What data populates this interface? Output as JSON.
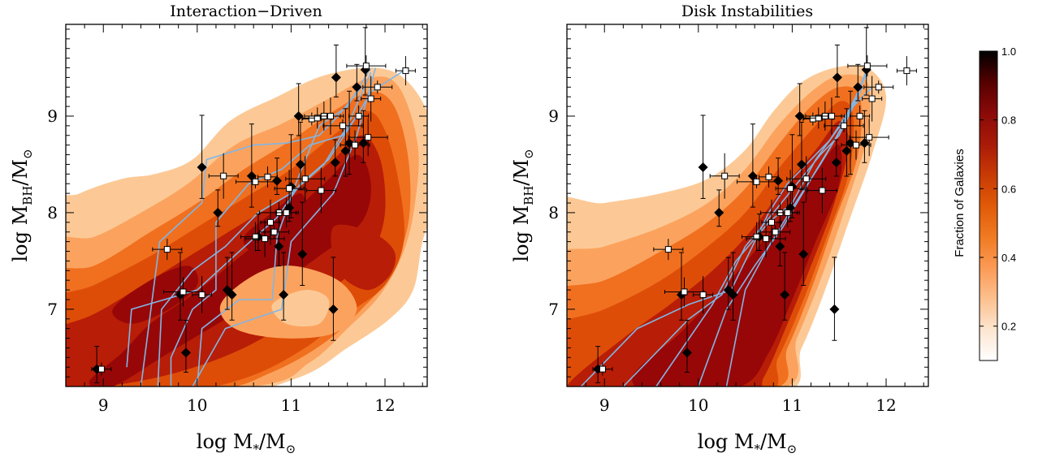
{
  "chart_data": [
    {
      "type": "heatmap",
      "title": "Interaction−Driven",
      "xlabel": "log M*/M☉",
      "ylabel": "log MBH/M☉",
      "xlim": [
        8.6,
        12.45
      ],
      "ylim": [
        6.2,
        9.95
      ],
      "xticks": [
        9,
        10,
        11,
        12
      ],
      "yticks": [
        7,
        8,
        9
      ],
      "contour_levels": [
        0.2,
        0.4,
        0.6,
        0.8,
        1.0
      ]
    },
    {
      "type": "heatmap",
      "title": "Disk Instabilities",
      "xlabel": "log M*/M☉",
      "ylabel": "log MBH/M☉",
      "xlim": [
        8.6,
        12.45
      ],
      "ylim": [
        6.2,
        9.95
      ],
      "xticks": [
        9,
        10,
        11,
        12
      ],
      "yticks": [
        7,
        8,
        9
      ],
      "contour_levels": [
        0.2,
        0.4,
        0.6,
        0.8,
        1.0
      ]
    }
  ],
  "observations": {
    "diamonds": [
      [
        8.93,
        6.38
      ],
      [
        9.88,
        6.55
      ],
      [
        9.82,
        7.15
      ],
      [
        10.05,
        8.47
      ],
      [
        10.22,
        8.0
      ],
      [
        10.32,
        7.2
      ],
      [
        10.37,
        7.15
      ],
      [
        10.58,
        8.38
      ],
      [
        10.65,
        7.75
      ],
      [
        10.87,
        7.65
      ],
      [
        10.92,
        7.15
      ],
      [
        11.12,
        7.57
      ],
      [
        10.85,
        8.33
      ],
      [
        11.08,
        9.0
      ],
      [
        11.1,
        8.5
      ],
      [
        11.45,
        7.0
      ],
      [
        11.47,
        8.52
      ],
      [
        11.48,
        9.4
      ],
      [
        11.58,
        8.64
      ],
      [
        11.62,
        8.72
      ],
      [
        11.7,
        9.3
      ],
      [
        11.77,
        8.72
      ],
      [
        11.79,
        9.48
      ],
      [
        11.0,
        8.27
      ],
      [
        10.98,
        8.05
      ]
    ],
    "squares": [
      [
        8.98,
        6.38
      ],
      [
        9.68,
        7.62
      ],
      [
        9.85,
        7.18
      ],
      [
        10.05,
        7.15
      ],
      [
        10.28,
        8.38
      ],
      [
        10.62,
        8.32
      ],
      [
        10.75,
        8.37
      ],
      [
        10.62,
        7.75
      ],
      [
        10.72,
        7.73
      ],
      [
        10.78,
        7.9
      ],
      [
        10.82,
        7.8
      ],
      [
        10.87,
        8.0
      ],
      [
        10.95,
        8.0
      ],
      [
        10.98,
        8.25
      ],
      [
        11.15,
        8.35
      ],
      [
        11.22,
        8.97
      ],
      [
        11.28,
        8.98
      ],
      [
        11.35,
        9.0
      ],
      [
        11.42,
        9.0
      ],
      [
        11.32,
        8.23
      ],
      [
        11.55,
        8.9
      ],
      [
        11.72,
        9.0
      ],
      [
        11.68,
        8.7
      ],
      [
        11.82,
        8.78
      ],
      [
        11.85,
        9.18
      ],
      [
        11.92,
        9.3
      ],
      [
        11.8,
        9.52
      ],
      [
        12.22,
        9.47
      ]
    ]
  },
  "colorbar": {
    "label": "Fraction of Galaxies",
    "ticks": [
      "0.2",
      "0.4",
      "0.6",
      "0.8",
      "1.0"
    ],
    "tick_values": [
      0.2,
      0.4,
      0.6,
      0.8,
      1.0
    ],
    "range": [
      0.1,
      1.0
    ],
    "stops": [
      "#ffffff",
      "#fde5d0",
      "#fcc08e",
      "#fb9a55",
      "#f07a22",
      "#e05a08",
      "#c83a05",
      "#a81a08",
      "#8a0a08",
      "#550000",
      "#000000"
    ]
  },
  "contour_colors": [
    "#fcc996",
    "#fba35e",
    "#f0701f",
    "#de4d07",
    "#b81d07",
    "#980707"
  ],
  "track_color": "#80b6e6"
}
